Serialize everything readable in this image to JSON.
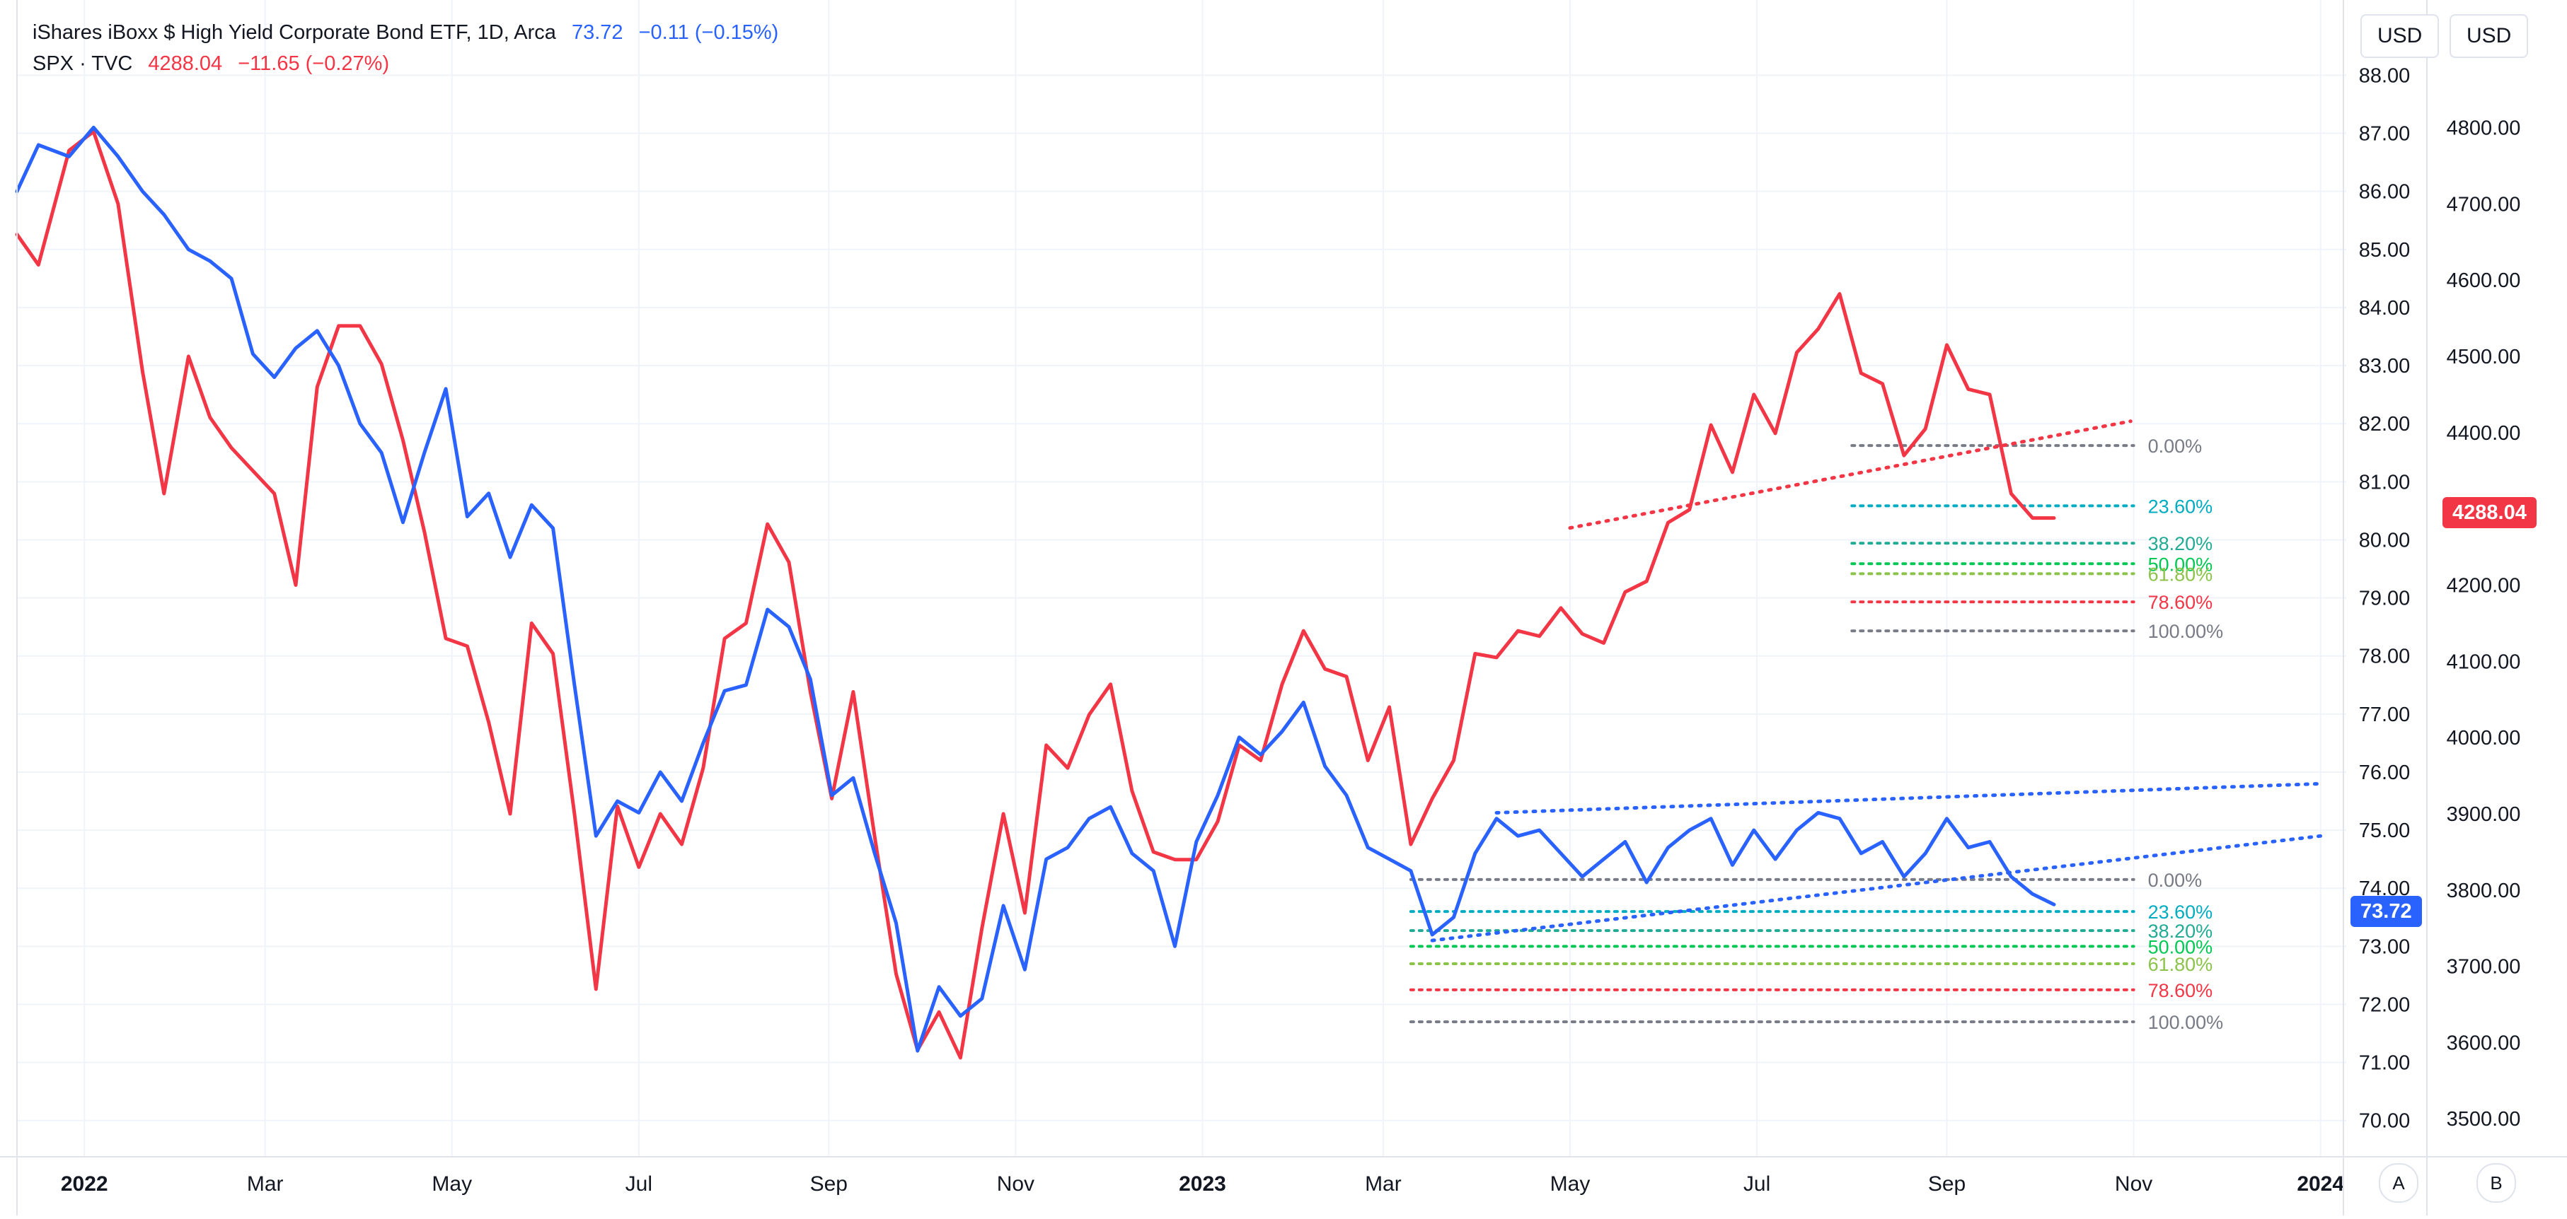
{
  "legend": {
    "row1": {
      "name": "iShares iBoxx $ High Yield Corporate Bond ETF, 1D, Arca",
      "price": "73.72",
      "change": "−0.11 (−0.15%)"
    },
    "row2": {
      "name": "SPX · TVC",
      "price": "4288.04",
      "change": "−11.65 (−0.27%)"
    }
  },
  "currency_buttons": [
    "USD",
    "USD"
  ],
  "scale_buttons": [
    "A",
    "B"
  ],
  "badges": {
    "spx_last": "4288.04",
    "hyg_last": "73.72"
  },
  "colors": {
    "hyg": "#2962ff",
    "spx": "#f23645",
    "grid": "#f0f3fa",
    "axis_text": "#131722"
  },
  "chart_data": {
    "type": "line",
    "x_axis": {
      "type": "date",
      "range": [
        "2021-12-10",
        "2024-01-08"
      ],
      "tick_labels": [
        {
          "date": "2022-01-01",
          "label": "2022",
          "bold": true
        },
        {
          "date": "2022-03-01",
          "label": "Mar",
          "bold": false
        },
        {
          "date": "2022-05-01",
          "label": "May",
          "bold": false
        },
        {
          "date": "2022-07-01",
          "label": "Jul",
          "bold": false
        },
        {
          "date": "2022-09-01",
          "label": "Sep",
          "bold": false
        },
        {
          "date": "2022-11-01",
          "label": "Nov",
          "bold": false
        },
        {
          "date": "2023-01-01",
          "label": "2023",
          "bold": true
        },
        {
          "date": "2023-03-01",
          "label": "Mar",
          "bold": false
        },
        {
          "date": "2023-05-01",
          "label": "May",
          "bold": false
        },
        {
          "date": "2023-07-01",
          "label": "Jul",
          "bold": false
        },
        {
          "date": "2023-09-01",
          "label": "Sep",
          "bold": false
        },
        {
          "date": "2023-11-01",
          "label": "Nov",
          "bold": false
        },
        {
          "date": "2024-01-01",
          "label": "2024",
          "bold": true
        }
      ]
    },
    "y_axis_left": {
      "range": [
        69.4,
        88.2
      ],
      "ticks": [
        "88.00",
        "87.00",
        "86.00",
        "85.00",
        "84.00",
        "83.00",
        "82.00",
        "81.00",
        "80.00",
        "79.00",
        "78.00",
        "77.00",
        "76.00",
        "75.00",
        "74.00",
        "73.00",
        "72.00",
        "71.00",
        "70.00"
      ]
    },
    "y_axis_right": {
      "range": [
        3452,
        4884
      ],
      "ticks": [
        "4800.00",
        "4700.00",
        "4600.00",
        "4500.00",
        "4400.00",
        "4300.00",
        "4200.00",
        "4100.00",
        "4000.00",
        "3900.00",
        "3800.00",
        "3700.00",
        "3600.00",
        "3500.00"
      ]
    },
    "grid": true,
    "series": [
      {
        "name": "iShares iBoxx $ High Yield Corporate Bond ETF, 1D, Arca",
        "axis": "left",
        "color": "#2962ff",
        "points": [
          [
            "2021-12-10",
            86.0
          ],
          [
            "2021-12-17",
            86.8
          ],
          [
            "2021-12-27",
            86.6
          ],
          [
            "2022-01-04",
            87.1
          ],
          [
            "2022-01-12",
            86.6
          ],
          [
            "2022-01-20",
            86.0
          ],
          [
            "2022-01-27",
            85.6
          ],
          [
            "2022-02-04",
            85.0
          ],
          [
            "2022-02-11",
            84.8
          ],
          [
            "2022-02-18",
            84.5
          ],
          [
            "2022-02-25",
            83.2
          ],
          [
            "2022-03-04",
            82.8
          ],
          [
            "2022-03-11",
            83.3
          ],
          [
            "2022-03-18",
            83.6
          ],
          [
            "2022-03-25",
            83.0
          ],
          [
            "2022-04-01",
            82.0
          ],
          [
            "2022-04-08",
            81.5
          ],
          [
            "2022-04-15",
            80.3
          ],
          [
            "2022-04-22",
            81.5
          ],
          [
            "2022-04-29",
            82.6
          ],
          [
            "2022-05-06",
            80.4
          ],
          [
            "2022-05-13",
            80.8
          ],
          [
            "2022-05-20",
            79.7
          ],
          [
            "2022-05-27",
            80.6
          ],
          [
            "2022-06-03",
            80.2
          ],
          [
            "2022-06-10",
            77.5
          ],
          [
            "2022-06-17",
            74.9
          ],
          [
            "2022-06-24",
            75.5
          ],
          [
            "2022-07-01",
            75.3
          ],
          [
            "2022-07-08",
            76.0
          ],
          [
            "2022-07-15",
            75.5
          ],
          [
            "2022-07-22",
            76.5
          ],
          [
            "2022-07-29",
            77.4
          ],
          [
            "2022-08-05",
            77.5
          ],
          [
            "2022-08-12",
            78.8
          ],
          [
            "2022-08-19",
            78.5
          ],
          [
            "2022-08-26",
            77.6
          ],
          [
            "2022-09-02",
            75.6
          ],
          [
            "2022-09-09",
            75.9
          ],
          [
            "2022-09-16",
            74.6
          ],
          [
            "2022-09-23",
            73.4
          ],
          [
            "2022-09-30",
            71.2
          ],
          [
            "2022-10-07",
            72.3
          ],
          [
            "2022-10-14",
            71.8
          ],
          [
            "2022-10-21",
            72.1
          ],
          [
            "2022-10-28",
            73.7
          ],
          [
            "2022-11-04",
            72.6
          ],
          [
            "2022-11-11",
            74.5
          ],
          [
            "2022-11-18",
            74.7
          ],
          [
            "2022-11-25",
            75.2
          ],
          [
            "2022-12-02",
            75.4
          ],
          [
            "2022-12-09",
            74.6
          ],
          [
            "2022-12-16",
            74.3
          ],
          [
            "2022-12-23",
            73.0
          ],
          [
            "2022-12-30",
            74.8
          ],
          [
            "2023-01-06",
            75.6
          ],
          [
            "2023-01-13",
            76.6
          ],
          [
            "2023-01-20",
            76.3
          ],
          [
            "2023-01-27",
            76.7
          ],
          [
            "2023-02-03",
            77.2
          ],
          [
            "2023-02-10",
            76.1
          ],
          [
            "2023-02-17",
            75.6
          ],
          [
            "2023-02-24",
            74.7
          ],
          [
            "2023-03-03",
            74.5
          ],
          [
            "2023-03-10",
            74.3
          ],
          [
            "2023-03-17",
            73.2
          ],
          [
            "2023-03-24",
            73.5
          ],
          [
            "2023-03-31",
            74.6
          ],
          [
            "2023-04-07",
            75.2
          ],
          [
            "2023-04-14",
            74.9
          ],
          [
            "2023-04-21",
            75.0
          ],
          [
            "2023-04-28",
            74.6
          ],
          [
            "2023-05-05",
            74.2
          ],
          [
            "2023-05-12",
            74.5
          ],
          [
            "2023-05-19",
            74.8
          ],
          [
            "2023-05-26",
            74.1
          ],
          [
            "2023-06-02",
            74.7
          ],
          [
            "2023-06-09",
            75.0
          ],
          [
            "2023-06-16",
            75.2
          ],
          [
            "2023-06-23",
            74.4
          ],
          [
            "2023-06-30",
            75.0
          ],
          [
            "2023-07-07",
            74.5
          ],
          [
            "2023-07-14",
            75.0
          ],
          [
            "2023-07-21",
            75.3
          ],
          [
            "2023-07-28",
            75.2
          ],
          [
            "2023-08-04",
            74.6
          ],
          [
            "2023-08-11",
            74.8
          ],
          [
            "2023-08-18",
            74.2
          ],
          [
            "2023-08-25",
            74.6
          ],
          [
            "2023-09-01",
            75.2
          ],
          [
            "2023-09-08",
            74.7
          ],
          [
            "2023-09-15",
            74.8
          ],
          [
            "2023-09-22",
            74.2
          ],
          [
            "2023-09-29",
            73.9
          ],
          [
            "2023-10-06",
            73.72
          ]
        ]
      },
      {
        "name": "SPX · TVC",
        "axis": "right",
        "color": "#f23645",
        "points": [
          [
            "2021-12-10",
            4660
          ],
          [
            "2021-12-17",
            4620
          ],
          [
            "2021-12-27",
            4770
          ],
          [
            "2022-01-04",
            4795
          ],
          [
            "2022-01-12",
            4700
          ],
          [
            "2022-01-20",
            4480
          ],
          [
            "2022-01-27",
            4320
          ],
          [
            "2022-02-04",
            4500
          ],
          [
            "2022-02-11",
            4420
          ],
          [
            "2022-02-18",
            4380
          ],
          [
            "2022-02-25",
            4350
          ],
          [
            "2022-03-04",
            4320
          ],
          [
            "2022-03-11",
            4200
          ],
          [
            "2022-03-18",
            4460
          ],
          [
            "2022-03-25",
            4540
          ],
          [
            "2022-04-01",
            4540
          ],
          [
            "2022-04-08",
            4490
          ],
          [
            "2022-04-15",
            4390
          ],
          [
            "2022-04-22",
            4270
          ],
          [
            "2022-04-29",
            4130
          ],
          [
            "2022-05-06",
            4120
          ],
          [
            "2022-05-13",
            4020
          ],
          [
            "2022-05-20",
            3900
          ],
          [
            "2022-05-27",
            4150
          ],
          [
            "2022-06-03",
            4110
          ],
          [
            "2022-06-10",
            3900
          ],
          [
            "2022-06-17",
            3670
          ],
          [
            "2022-06-24",
            3910
          ],
          [
            "2022-07-01",
            3830
          ],
          [
            "2022-07-08",
            3900
          ],
          [
            "2022-07-15",
            3860
          ],
          [
            "2022-07-22",
            3960
          ],
          [
            "2022-07-29",
            4130
          ],
          [
            "2022-08-05",
            4150
          ],
          [
            "2022-08-12",
            4280
          ],
          [
            "2022-08-19",
            4230
          ],
          [
            "2022-08-26",
            4060
          ],
          [
            "2022-09-02",
            3920
          ],
          [
            "2022-09-09",
            4060
          ],
          [
            "2022-09-16",
            3870
          ],
          [
            "2022-09-23",
            3690
          ],
          [
            "2022-09-30",
            3590
          ],
          [
            "2022-10-07",
            3640
          ],
          [
            "2022-10-14",
            3580
          ],
          [
            "2022-10-21",
            3750
          ],
          [
            "2022-10-28",
            3900
          ],
          [
            "2022-11-04",
            3770
          ],
          [
            "2022-11-11",
            3990
          ],
          [
            "2022-11-18",
            3960
          ],
          [
            "2022-11-25",
            4030
          ],
          [
            "2022-12-02",
            4070
          ],
          [
            "2022-12-09",
            3930
          ],
          [
            "2022-12-16",
            3850
          ],
          [
            "2022-12-23",
            3840
          ],
          [
            "2022-12-30",
            3840
          ],
          [
            "2023-01-06",
            3890
          ],
          [
            "2023-01-13",
            3990
          ],
          [
            "2023-01-20",
            3970
          ],
          [
            "2023-01-27",
            4070
          ],
          [
            "2023-02-03",
            4140
          ],
          [
            "2023-02-10",
            4090
          ],
          [
            "2023-02-17",
            4080
          ],
          [
            "2023-02-24",
            3970
          ],
          [
            "2023-03-03",
            4040
          ],
          [
            "2023-03-10",
            3860
          ],
          [
            "2023-03-17",
            3920
          ],
          [
            "2023-03-24",
            3970
          ],
          [
            "2023-03-31",
            4110
          ],
          [
            "2023-04-07",
            4105
          ],
          [
            "2023-04-14",
            4140
          ],
          [
            "2023-04-21",
            4133
          ],
          [
            "2023-04-28",
            4170
          ],
          [
            "2023-05-05",
            4136
          ],
          [
            "2023-05-12",
            4124
          ],
          [
            "2023-05-19",
            4191
          ],
          [
            "2023-05-26",
            4205
          ],
          [
            "2023-06-02",
            4282
          ],
          [
            "2023-06-09",
            4299
          ],
          [
            "2023-06-16",
            4410
          ],
          [
            "2023-06-23",
            4348
          ],
          [
            "2023-06-30",
            4450
          ],
          [
            "2023-07-07",
            4399
          ],
          [
            "2023-07-14",
            4505
          ],
          [
            "2023-07-21",
            4536
          ],
          [
            "2023-07-28",
            4582
          ],
          [
            "2023-08-04",
            4478
          ],
          [
            "2023-08-11",
            4464
          ],
          [
            "2023-08-18",
            4370
          ],
          [
            "2023-08-25",
            4405
          ],
          [
            "2023-09-01",
            4515
          ],
          [
            "2023-09-08",
            4457
          ],
          [
            "2023-09-15",
            4450
          ],
          [
            "2023-09-22",
            4320
          ],
          [
            "2023-09-29",
            4288
          ],
          [
            "2023-10-06",
            4288.04
          ]
        ]
      }
    ],
    "trend_lines": [
      {
        "axis": "right",
        "color": "#f23645",
        "from": [
          "2023-05-01",
          4275
        ],
        "to": [
          "2023-10-31",
          4415
        ]
      },
      {
        "axis": "left",
        "color": "#2962ff",
        "from": [
          "2023-03-17",
          73.1
        ],
        "to": [
          "2024-01-01",
          74.9
        ]
      },
      {
        "axis": "left",
        "color": "#2962ff",
        "from": [
          "2023-04-07",
          75.3
        ],
        "to": [
          "2024-01-01",
          75.8
        ]
      }
    ],
    "fib_levels": [
      {
        "axis": "right",
        "from": "2023-08-01",
        "to": "2023-11-01",
        "levels": [
          {
            "label": "0.00%",
            "value": 4383,
            "color": "#787b86"
          },
          {
            "label": "23.60%",
            "value": 4304,
            "color": "#00acc1"
          },
          {
            "label": "38.20%",
            "value": 4255,
            "color": "#22ab94"
          },
          {
            "label": "50.00%",
            "value": 4228,
            "color": "#00c853"
          },
          {
            "label": "61.80%",
            "value": 4215,
            "color": "#8bc34a"
          },
          {
            "label": "78.60%",
            "value": 4178,
            "color": "#f23645"
          },
          {
            "label": "100.00%",
            "value": 4140,
            "color": "#787b86"
          }
        ]
      },
      {
        "axis": "left",
        "from": "2023-03-10",
        "to": "2023-11-01",
        "levels": [
          {
            "label": "0.00%",
            "value": 74.15,
            "color": "#787b86"
          },
          {
            "label": "23.60%",
            "value": 73.6,
            "color": "#00acc1"
          },
          {
            "label": "38.20%",
            "value": 73.27,
            "color": "#22ab94"
          },
          {
            "label": "50.00%",
            "value": 73.0,
            "color": "#00c853"
          },
          {
            "label": "61.80%",
            "value": 72.7,
            "color": "#8bc34a"
          },
          {
            "label": "78.60%",
            "value": 72.25,
            "color": "#f23645"
          },
          {
            "label": "100.00%",
            "value": 71.7,
            "color": "#787b86"
          }
        ]
      }
    ]
  }
}
